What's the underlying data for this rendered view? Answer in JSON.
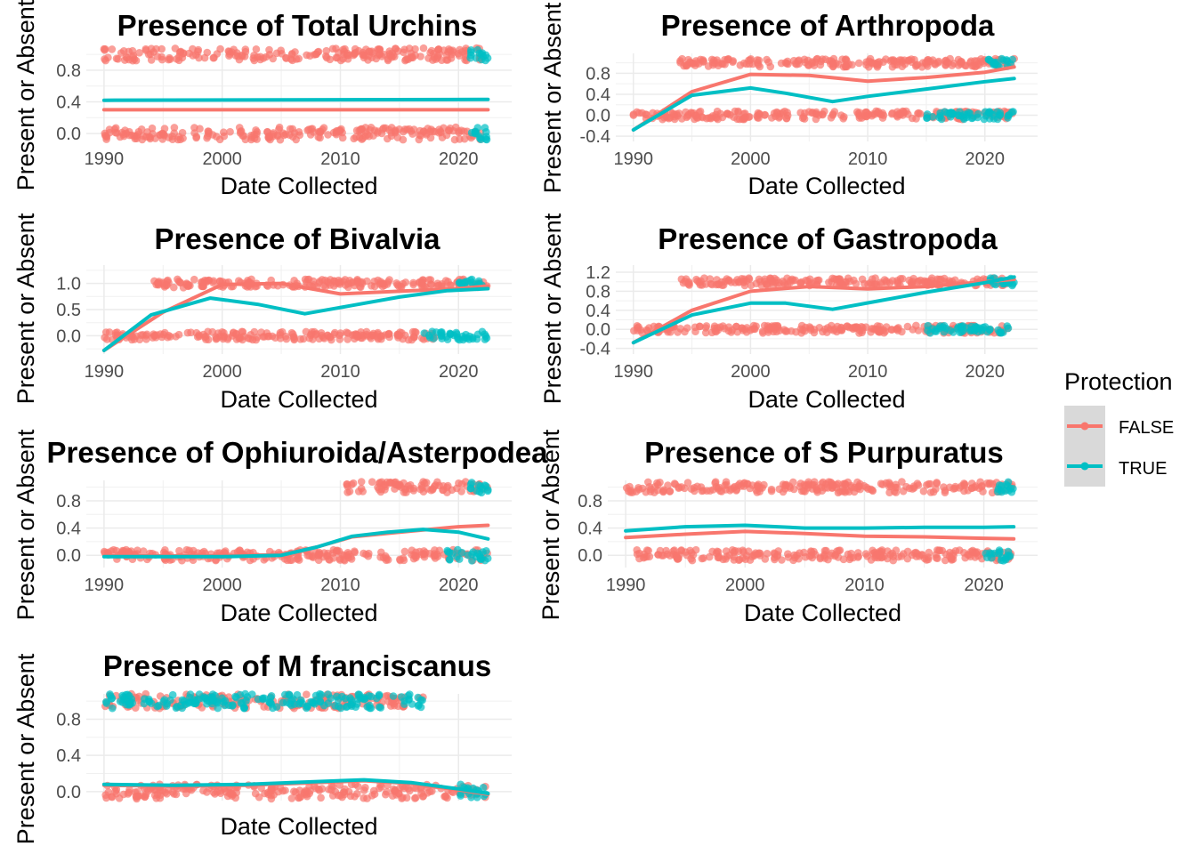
{
  "legend": {
    "title": "Protection",
    "entries": [
      {
        "label": "FALSE",
        "color": "#F8766D"
      },
      {
        "label": "TRUE",
        "color": "#00BFC4"
      }
    ]
  },
  "chart_data": [
    {
      "type": "scatter",
      "title": "Presence of Total Urchins",
      "xlabel": "Date Collected",
      "ylabel": "Present or Absent",
      "xlim": [
        1988.5,
        2024.5
      ],
      "ylim": [
        -0.1,
        1.08
      ],
      "x_ticks": [
        1990,
        2000,
        2010,
        2020
      ],
      "y_ticks": [
        0.0,
        0.4,
        0.8
      ],
      "y_tick_labels": [
        "0.0",
        "0.4",
        "0.8"
      ],
      "point_rows": [
        {
          "y": 1,
          "x_range": [
            1990,
            2022
          ],
          "color": "#F8766D"
        },
        {
          "y": 0,
          "x_range": [
            1990,
            2022
          ],
          "color": "#F8766D"
        },
        {
          "y": 1,
          "x_range": [
            2021,
            2022.5
          ],
          "color": "#00BFC4"
        },
        {
          "y": 0,
          "x_range": [
            2021,
            2022.5
          ],
          "color": "#00BFC4"
        }
      ],
      "series": [
        {
          "name": "FALSE",
          "color": "#F8766D",
          "x": [
            1990,
            2022.5
          ],
          "y": [
            0.3,
            0.3
          ]
        },
        {
          "name": "TRUE",
          "color": "#00BFC4",
          "x": [
            1990,
            2022.5
          ],
          "y": [
            0.42,
            0.43
          ]
        }
      ]
    },
    {
      "type": "scatter",
      "title": "Presence of Arthropoda",
      "xlabel": "Date Collected",
      "ylabel": "Present or Absent",
      "xlim": [
        1988.5,
        2024.5
      ],
      "ylim": [
        -0.5,
        1.18
      ],
      "x_ticks": [
        1990,
        2000,
        2010,
        2020
      ],
      "y_ticks": [
        -0.4,
        0.0,
        0.4,
        0.8
      ],
      "y_tick_labels": [
        "-0.4",
        "0.0",
        "0.4",
        "0.8"
      ],
      "point_rows": [
        {
          "y": 1,
          "x_range": [
            1994,
            2022.5
          ],
          "color": "#F8766D"
        },
        {
          "y": 0,
          "x_range": [
            1990,
            2022.5
          ],
          "color": "#F8766D"
        },
        {
          "y": 0,
          "x_range": [
            2015,
            2022.5
          ],
          "color": "#00BFC4"
        },
        {
          "y": 1,
          "x_range": [
            2020,
            2022.5
          ],
          "color": "#00BFC4"
        }
      ],
      "series": [
        {
          "name": "FALSE",
          "color": "#F8766D",
          "x": [
            1990,
            1995,
            2000,
            2005,
            2010,
            2015,
            2020,
            2022.5
          ],
          "y": [
            -0.28,
            0.45,
            0.78,
            0.76,
            0.65,
            0.72,
            0.82,
            0.92
          ]
        },
        {
          "name": "TRUE",
          "color": "#00BFC4",
          "x": [
            1990,
            1995,
            2000,
            2003,
            2007,
            2010,
            2015,
            2020,
            2022.5
          ],
          "y": [
            -0.28,
            0.38,
            0.52,
            0.42,
            0.26,
            0.36,
            0.5,
            0.64,
            0.7
          ]
        }
      ]
    },
    {
      "type": "scatter",
      "title": "Presence of Bivalvia",
      "xlabel": "Date Collected",
      "ylabel": "Present or Absent",
      "xlim": [
        1988.5,
        2024.5
      ],
      "ylim": [
        -0.35,
        1.35
      ],
      "x_ticks": [
        1990,
        2000,
        2010,
        2020
      ],
      "y_ticks": [
        0.0,
        0.5,
        1.0
      ],
      "y_tick_labels": [
        "0.0",
        "0.5",
        "1.0"
      ],
      "point_rows": [
        {
          "y": 1,
          "x_range": [
            1994,
            2022.5
          ],
          "color": "#F8766D"
        },
        {
          "y": 0,
          "x_range": [
            1990,
            2018
          ],
          "color": "#F8766D"
        },
        {
          "y": 0,
          "x_range": [
            2017,
            2022.5
          ],
          "color": "#00BFC4"
        },
        {
          "y": 1,
          "x_range": [
            2020,
            2022.5
          ],
          "color": "#00BFC4"
        }
      ],
      "series": [
        {
          "name": "FALSE",
          "color": "#F8766D",
          "x": [
            1990,
            1995,
            2000,
            2005,
            2010,
            2015,
            2020,
            2022.5
          ],
          "y": [
            -0.28,
            0.45,
            0.98,
            1.0,
            0.8,
            0.85,
            0.9,
            0.95
          ]
        },
        {
          "name": "TRUE",
          "color": "#00BFC4",
          "x": [
            1990,
            1994,
            1999,
            2003,
            2007,
            2011,
            2015,
            2019,
            2022.5
          ],
          "y": [
            -0.28,
            0.4,
            0.72,
            0.6,
            0.42,
            0.58,
            0.74,
            0.86,
            0.9
          ]
        }
      ]
    },
    {
      "type": "scatter",
      "title": "Presence of Gastropoda",
      "xlabel": "Date Collected",
      "ylabel": "Present or Absent",
      "xlim": [
        1988.5,
        2024.5
      ],
      "ylim": [
        -0.52,
        1.35
      ],
      "x_ticks": [
        1990,
        2000,
        2010,
        2020
      ],
      "y_ticks": [
        -0.4,
        0.0,
        0.4,
        0.8,
        1.2
      ],
      "y_tick_labels": [
        "-0.4",
        "0.0",
        "0.4",
        "0.8",
        "1.2"
      ],
      "point_rows": [
        {
          "y": 1,
          "x_range": [
            1994,
            2022.5
          ],
          "color": "#F8766D"
        },
        {
          "y": 0,
          "x_range": [
            1990,
            2022
          ],
          "color": "#F8766D"
        },
        {
          "y": 0,
          "x_range": [
            2015,
            2022
          ],
          "color": "#00BFC4"
        },
        {
          "y": 1,
          "x_range": [
            2020,
            2022.5
          ],
          "color": "#00BFC4"
        }
      ],
      "series": [
        {
          "name": "FALSE",
          "color": "#F8766D",
          "x": [
            1990,
            1995,
            2000,
            2005,
            2010,
            2015,
            2020,
            2022.5
          ],
          "y": [
            -0.28,
            0.4,
            0.8,
            0.9,
            0.85,
            0.9,
            1.0,
            1.05
          ]
        },
        {
          "name": "TRUE",
          "color": "#00BFC4",
          "x": [
            1990,
            1995,
            2000,
            2003,
            2007,
            2011,
            2015,
            2020,
            2022.5
          ],
          "y": [
            -0.28,
            0.3,
            0.55,
            0.55,
            0.42,
            0.6,
            0.78,
            0.98,
            1.1
          ]
        }
      ]
    },
    {
      "type": "scatter",
      "title": "Presence of Ophiuroida/Asterpodea",
      "xlabel": "Date Collected",
      "ylabel": "Present or Absent",
      "xlim": [
        1988.5,
        2024.5
      ],
      "ylim": [
        -0.18,
        1.1
      ],
      "x_ticks": [
        1990,
        2000,
        2010,
        2020
      ],
      "y_ticks": [
        0.0,
        0.4,
        0.8
      ],
      "y_tick_labels": [
        "0.0",
        "0.4",
        "0.8"
      ],
      "point_rows": [
        {
          "y": 1,
          "x_range": [
            2010.5,
            2022.5
          ],
          "color": "#F8766D"
        },
        {
          "y": 0,
          "x_range": [
            1990,
            2022.5
          ],
          "color": "#F8766D"
        },
        {
          "y": 0,
          "x_range": [
            2019,
            2022.5
          ],
          "color": "#00BFC4"
        },
        {
          "y": 1,
          "x_range": [
            2021,
            2022.5
          ],
          "color": "#00BFC4"
        }
      ],
      "series": [
        {
          "name": "FALSE",
          "color": "#F8766D",
          "x": [
            1990,
            2000,
            2005,
            2008,
            2011,
            2015,
            2020,
            2022.5
          ],
          "y": [
            -0.01,
            -0.01,
            0.01,
            0.12,
            0.27,
            0.34,
            0.42,
            0.44
          ]
        },
        {
          "name": "TRUE",
          "color": "#00BFC4",
          "x": [
            1990,
            2000,
            2005,
            2008,
            2011,
            2014,
            2017,
            2020,
            2022.5
          ],
          "y": [
            -0.02,
            -0.02,
            0.0,
            0.12,
            0.28,
            0.34,
            0.38,
            0.34,
            0.24
          ]
        }
      ]
    },
    {
      "type": "scatter",
      "title": "Presence of S Purpuratus",
      "xlabel": "Date Collected",
      "ylabel": "Present or Absent",
      "xlim": [
        1988.5,
        2024.5
      ],
      "ylim": [
        -0.18,
        1.1
      ],
      "x_ticks": [
        1990,
        2000,
        2010,
        2020
      ],
      "y_ticks": [
        0.0,
        0.4,
        0.8
      ],
      "y_tick_labels": [
        "0.0",
        "0.4",
        "0.8"
      ],
      "point_rows": [
        {
          "y": 1,
          "x_range": [
            1990,
            2022.5
          ],
          "color": "#F8766D"
        },
        {
          "y": 0,
          "x_range": [
            1990,
            2022.5
          ],
          "color": "#F8766D"
        },
        {
          "y": 0,
          "x_range": [
            2020,
            2022.5
          ],
          "color": "#00BFC4"
        },
        {
          "y": 1,
          "x_range": [
            2021,
            2022.5
          ],
          "color": "#00BFC4"
        }
      ],
      "series": [
        {
          "name": "FALSE",
          "color": "#F8766D",
          "x": [
            1990,
            1995,
            2000,
            2005,
            2010,
            2015,
            2020,
            2022.5
          ],
          "y": [
            0.26,
            0.31,
            0.35,
            0.32,
            0.28,
            0.27,
            0.25,
            0.24
          ]
        },
        {
          "name": "TRUE",
          "color": "#00BFC4",
          "x": [
            1990,
            1995,
            2000,
            2005,
            2010,
            2015,
            2020,
            2022.5
          ],
          "y": [
            0.36,
            0.42,
            0.44,
            0.4,
            0.4,
            0.41,
            0.41,
            0.42
          ]
        }
      ]
    },
    {
      "type": "scatter",
      "title": "Presence of M franciscanus",
      "xlabel": "Date Collected",
      "ylabel": "Present or Absent",
      "xlim": [
        1988.5,
        2024.5
      ],
      "ylim": [
        -0.1,
        1.08
      ],
      "x_ticks": [],
      "y_ticks": [
        0.0,
        0.4,
        0.8
      ],
      "y_tick_labels": [
        "0.0",
        "0.4",
        "0.8"
      ],
      "point_rows": [
        {
          "y": 1,
          "x_range": [
            1990,
            2017
          ],
          "color": "#F8766D"
        },
        {
          "y": 1,
          "x_range": [
            1990,
            2017
          ],
          "color": "#00BFC4"
        },
        {
          "y": 0,
          "x_range": [
            1990,
            2022.5
          ],
          "color": "#F8766D"
        },
        {
          "y": 0,
          "x_range": [
            2020,
            2022.5
          ],
          "color": "#00BFC4"
        }
      ],
      "series": [
        {
          "name": "FALSE",
          "color": "#F8766D",
          "x": [
            1990,
            1996,
            2002,
            2008,
            2012,
            2016,
            2020,
            2022.5
          ],
          "y": [
            0.07,
            0.06,
            0.07,
            0.1,
            0.12,
            0.09,
            0.02,
            -0.03
          ]
        },
        {
          "name": "TRUE",
          "color": "#00BFC4",
          "x": [
            1990,
            1996,
            2002,
            2008,
            2012,
            2016,
            2020,
            2022.5
          ],
          "y": [
            0.08,
            0.07,
            0.08,
            0.11,
            0.13,
            0.1,
            0.03,
            -0.02
          ]
        }
      ]
    }
  ]
}
